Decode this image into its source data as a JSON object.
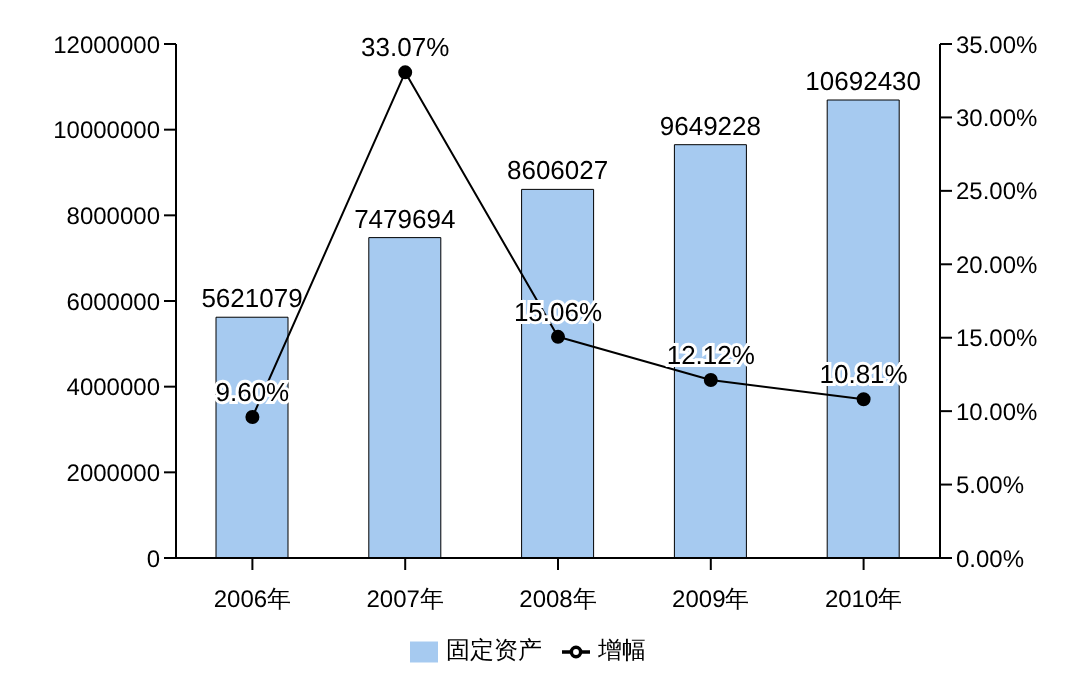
{
  "chart_data": {
    "type": "bar",
    "categories": [
      "2006年",
      "2007年",
      "2008年",
      "2009年",
      "2010年"
    ],
    "series": [
      {
        "name": "固定资产",
        "color": "#a6caf0",
        "values": [
          5621079,
          7479694,
          8606027,
          9649228,
          10692430
        ],
        "value_labels": [
          "5621079",
          "7479694",
          "8606027",
          "9649228",
          "10692430"
        ]
      },
      {
        "name": "增幅",
        "type": "line",
        "axis": "y2",
        "color": "#000000",
        "values": [
          9.6,
          33.07,
          15.06,
          12.12,
          10.81
        ],
        "value_labels": [
          "9.60%",
          "33.07%",
          "15.06%",
          "12.12%",
          "10.81%"
        ]
      }
    ],
    "ylim": [
      0,
      12000000
    ],
    "yticks": [
      0,
      2000000,
      4000000,
      6000000,
      8000000,
      10000000,
      12000000
    ],
    "y2lim": [
      0,
      35
    ],
    "y2ticks": [
      {
        "value": 0,
        "label": "0.00%"
      },
      {
        "value": 5,
        "label": "5.00%"
      },
      {
        "value": 10,
        "label": "10.00%"
      },
      {
        "value": 15,
        "label": "15.00%"
      },
      {
        "value": 20,
        "label": "20.00%"
      },
      {
        "value": 25,
        "label": "25.00%"
      },
      {
        "value": 30,
        "label": "30.00%"
      },
      {
        "value": 35,
        "label": "35.00%"
      }
    ],
    "legend": "bottom",
    "marker": "circle",
    "grid": false
  }
}
